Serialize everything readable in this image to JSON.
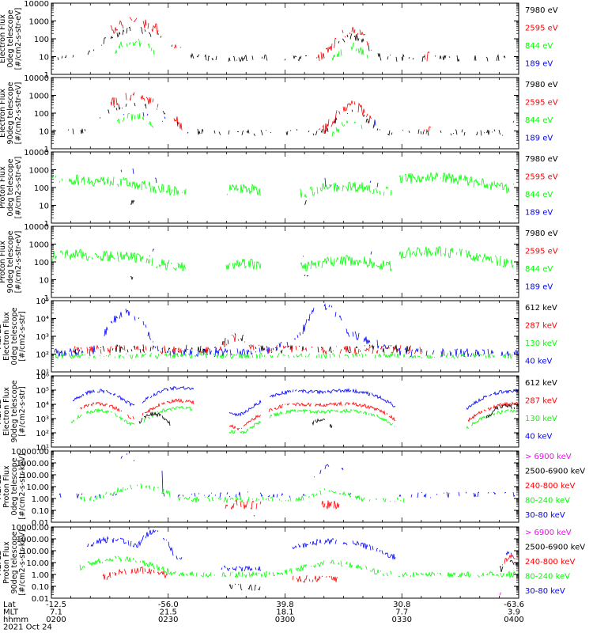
{
  "colors": {
    "black": "#000000",
    "red": "#ff0000",
    "green": "#00ff00",
    "blue": "#0000ff",
    "magenta": "#ff00ff"
  },
  "chart_data": [
    {
      "type": "line",
      "ylabel": [
        "Electron Flux",
        "0deg telescope",
        "[#/cm2-s-str-eV]"
      ],
      "scale": "log",
      "ylim": [
        1,
        10000
      ],
      "yticks": [
        "1",
        "10",
        "100",
        "1000",
        "10000"
      ],
      "legend": [
        "7980 eV",
        "2595 eV",
        "844 eV",
        "189 eV"
      ],
      "legend_colors": [
        "black",
        "red",
        "green",
        "blue"
      ]
    },
    {
      "type": "line",
      "ylabel": [
        "Electron Flux",
        "90deg telescope",
        "[#/cm2-s-str-eV]"
      ],
      "scale": "log",
      "ylim": [
        1,
        10000
      ],
      "yticks": [
        "1",
        "10",
        "100",
        "1000",
        "10000"
      ],
      "legend": [
        "7980 eV",
        "2595 eV",
        "844 eV",
        "189 eV"
      ],
      "legend_colors": [
        "black",
        "red",
        "green",
        "blue"
      ]
    },
    {
      "type": "line",
      "ylabel": [
        "Proton Flux",
        "0deg telescope",
        "[#/cm2-s-str-eV]"
      ],
      "scale": "log",
      "ylim": [
        1,
        10000
      ],
      "yticks": [
        "1",
        "10",
        "100",
        "1000",
        "10000"
      ],
      "legend": [
        "7980 eV",
        "2595 eV",
        "844 eV",
        "189 eV"
      ],
      "legend_colors": [
        "black",
        "red",
        "green",
        "blue"
      ]
    },
    {
      "type": "line",
      "ylabel": [
        "Proton Flux",
        "90deg telescope",
        "[#/cm2-s-str-eV]"
      ],
      "scale": "log",
      "ylim": [
        1,
        10000
      ],
      "yticks": [
        "1",
        "10",
        "100",
        "1000",
        "10000"
      ],
      "legend": [
        "7980 eV",
        "2595 eV",
        "844 eV",
        "189 eV"
      ],
      "legend_colors": [
        "black",
        "red",
        "green",
        "blue"
      ]
    },
    {
      "type": "line",
      "ylabel": [
        "MEPED",
        "Electron Flux",
        "0deg telescope",
        "[#/cm2-s-str]"
      ],
      "scale": "log",
      "ylim": [
        10,
        100000
      ],
      "yticks": [
        "10¹",
        "10²",
        "10³",
        "10⁴",
        "10⁵"
      ],
      "legend": [
        "612 keV",
        "287 keV",
        "130 keV",
        "40 keV"
      ],
      "legend_colors": [
        "black",
        "red",
        "green",
        "blue"
      ]
    },
    {
      "type": "line",
      "ylabel": [
        "MEPED",
        "Electron Flux",
        "90deg telescope",
        "[#/cm2-s-str]"
      ],
      "scale": "log",
      "ylim": [
        10,
        1000000
      ],
      "yticks": [
        "10¹",
        "10²",
        "10³",
        "10⁴",
        "10⁵",
        "10⁶"
      ],
      "legend": [
        "612 keV",
        "287 keV",
        "130 keV",
        "40 keV"
      ],
      "legend_colors": [
        "black",
        "red",
        "green",
        "blue"
      ]
    },
    {
      "type": "line",
      "ylabel": [
        "MEPED",
        "Proton Flux",
        "0deg telescope",
        "[#/cm2-s-str-keV]"
      ],
      "scale": "log",
      "ylim": [
        0.01,
        10000
      ],
      "yticks": [
        "0.01",
        "0.10",
        "1.00",
        "10.00",
        "100.00",
        "1000.00",
        "10000.00"
      ],
      "legend": [
        "> 6900 keV",
        "2500-6900 keV",
        "240-800 keV",
        "80-240 keV",
        "30-80 keV"
      ],
      "legend_colors": [
        "magenta",
        "black",
        "red",
        "green",
        "blue"
      ]
    },
    {
      "type": "line",
      "ylabel": [
        "MEPED",
        "Proton Flux",
        "90deg telescope",
        "[#/cm2-s-str-keV]"
      ],
      "scale": "log",
      "ylim": [
        0.01,
        10000
      ],
      "yticks": [
        "0.01",
        "0.10",
        "1.00",
        "10.00",
        "100.00",
        "1000.00",
        "10000.00"
      ],
      "legend": [
        "> 6900 keV",
        "2500-6900 keV",
        "240-800 keV",
        "80-240 keV",
        "30-80 keV"
      ],
      "legend_colors": [
        "magenta",
        "black",
        "red",
        "green",
        "blue"
      ]
    }
  ],
  "x_axis": {
    "row_labels": [
      "Lat",
      "MLT",
      "hhmm",
      "2021 Oct 24"
    ],
    "ticks": [
      {
        "lat": "-12.5",
        "mlt": "7.1",
        "hhmm": "0200"
      },
      {
        "lat": "-56.0",
        "mlt": "21.5",
        "hhmm": "0230"
      },
      {
        "lat": "39.8",
        "mlt": "18.1",
        "hhmm": "0300"
      },
      {
        "lat": "30.8",
        "mlt": "7.7",
        "hhmm": "0330"
      },
      {
        "lat": "-63.6",
        "mlt": "3.9",
        "hhmm": "0400"
      }
    ],
    "minor_per_major": 6
  }
}
